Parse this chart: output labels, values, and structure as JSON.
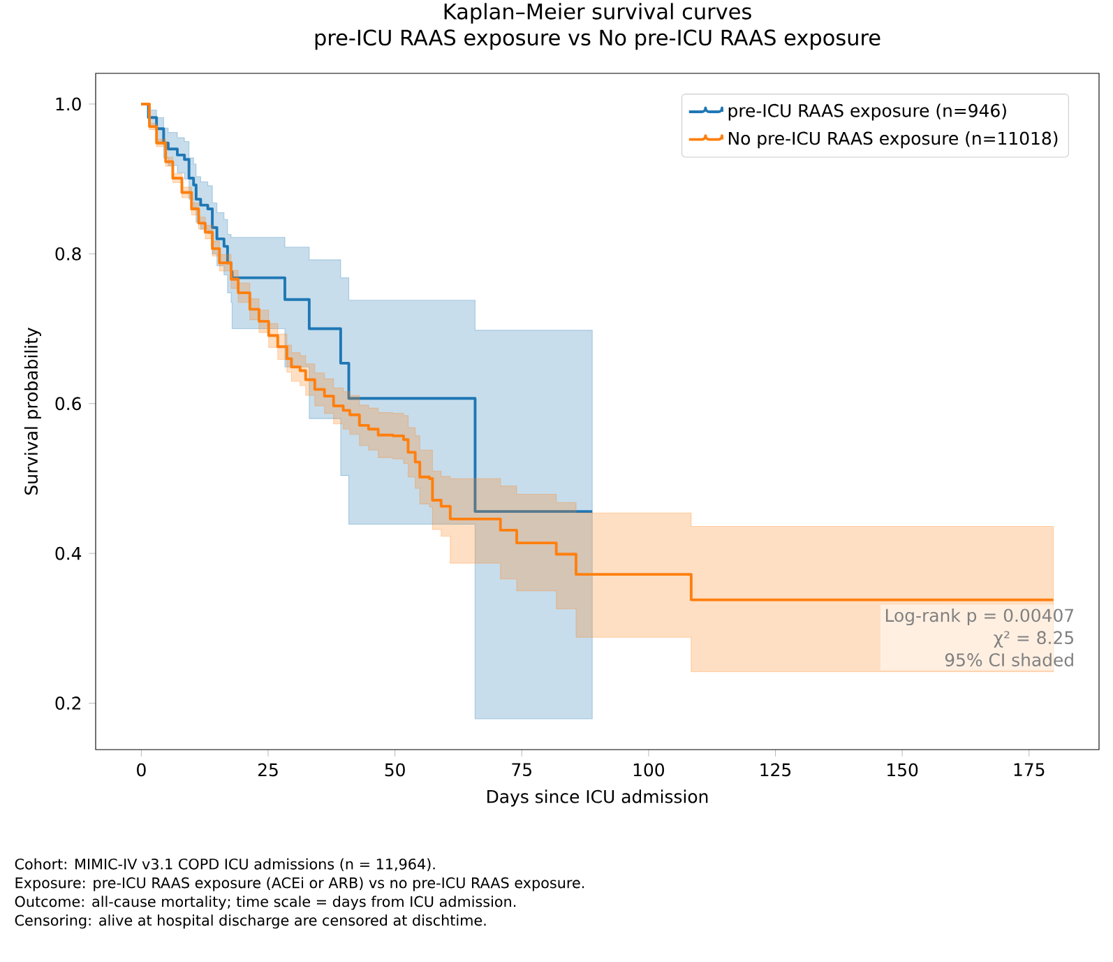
{
  "chart_data": {
    "type": "step",
    "title": "Kaplan–Meier survival curves",
    "subtitle": "pre-ICU RAAS exposure vs No pre-ICU RAAS exposure",
    "xlabel": "Days since ICU admission",
    "ylabel": "Survival probability",
    "xlim": [
      -9,
      188.8
    ],
    "ylim": [
      0.138,
      1.041
    ],
    "xticks": [
      0,
      25,
      50,
      75,
      100,
      125,
      150,
      175
    ],
    "yticks": [
      0.2,
      0.4,
      0.6,
      0.8,
      {
        "value": 1.0,
        "label": "1.0"
      }
    ],
    "legend": "top right",
    "series": [
      {
        "name": "pre-ICU RAAS exposure (n=946)",
        "color": "#1f77b4",
        "x": [
          0,
          1.4,
          3.0,
          4.4,
          5.3,
          7.1,
          8.5,
          9.4,
          10.3,
          10.8,
          11.7,
          13.1,
          14.0,
          14.9,
          16.3,
          17.0,
          17.7,
          17.9,
          28.3,
          33.1,
          39.3,
          40.9,
          65.8,
          88.9
        ],
        "values": [
          1.0,
          0.982,
          0.967,
          0.948,
          0.94,
          0.932,
          0.926,
          0.901,
          0.892,
          0.873,
          0.865,
          0.86,
          0.835,
          0.82,
          0.81,
          0.788,
          0.776,
          0.768,
          0.739,
          0.7,
          0.654,
          0.607,
          0.456,
          0.456
        ],
        "lower": [
          1.0,
          0.97,
          0.95,
          0.928,
          0.918,
          0.908,
          0.9,
          0.873,
          0.862,
          0.842,
          0.833,
          0.827,
          0.8,
          0.784,
          0.772,
          0.748,
          0.735,
          0.7,
          0.649,
          0.58,
          0.504,
          0.439,
          0.179,
          0.179
        ],
        "upper": [
          1.0,
          0.992,
          0.982,
          0.968,
          0.962,
          0.955,
          0.95,
          0.928,
          0.92,
          0.903,
          0.896,
          0.891,
          0.868,
          0.855,
          0.846,
          0.826,
          0.822,
          0.822,
          0.809,
          0.792,
          0.768,
          0.738,
          0.698,
          0.698
        ]
      },
      {
        "name": "No pre-ICU RAAS exposure (n=11018)",
        "color": "#ff7f0e",
        "x": [
          0,
          1.6,
          3.0,
          4.8,
          6.2,
          8.0,
          9.9,
          11.3,
          12.6,
          14.0,
          15.4,
          17.7,
          19.1,
          21.4,
          23.2,
          25.1,
          26.9,
          28.7,
          29.6,
          31.3,
          32.4,
          34.2,
          36.1,
          37.9,
          39.8,
          41.1,
          43.0,
          44.8,
          46.7,
          49.6,
          51.7,
          52.6,
          54.0,
          54.9,
          56.8,
          57.4,
          59.1,
          60.9,
          70.8,
          74.0,
          81.8,
          85.7,
          108.4,
          179.8
        ],
        "values": [
          1.0,
          0.97,
          0.948,
          0.923,
          0.901,
          0.882,
          0.86,
          0.841,
          0.829,
          0.807,
          0.788,
          0.766,
          0.748,
          0.726,
          0.71,
          0.691,
          0.676,
          0.66,
          0.649,
          0.644,
          0.632,
          0.619,
          0.61,
          0.597,
          0.591,
          0.585,
          0.571,
          0.566,
          0.558,
          0.557,
          0.552,
          0.535,
          0.522,
          0.502,
          0.5,
          0.471,
          0.463,
          0.446,
          0.431,
          0.414,
          0.399,
          0.372,
          0.338,
          0.338
        ],
        "lower": [
          1.0,
          0.966,
          0.943,
          0.917,
          0.895,
          0.875,
          0.852,
          0.833,
          0.82,
          0.797,
          0.777,
          0.754,
          0.735,
          0.712,
          0.695,
          0.675,
          0.659,
          0.642,
          0.63,
          0.624,
          0.611,
          0.597,
          0.587,
          0.573,
          0.566,
          0.559,
          0.544,
          0.538,
          0.528,
          0.526,
          0.52,
          0.502,
          0.487,
          0.466,
          0.462,
          0.432,
          0.423,
          0.387,
          0.366,
          0.35,
          0.326,
          0.288,
          0.242,
          0.242
        ],
        "upper": [
          1.0,
          0.974,
          0.953,
          0.929,
          0.907,
          0.889,
          0.868,
          0.849,
          0.838,
          0.817,
          0.799,
          0.778,
          0.761,
          0.74,
          0.725,
          0.707,
          0.693,
          0.678,
          0.668,
          0.664,
          0.653,
          0.641,
          0.633,
          0.621,
          0.616,
          0.611,
          0.598,
          0.594,
          0.588,
          0.587,
          0.584,
          0.568,
          0.557,
          0.538,
          0.538,
          0.51,
          0.503,
          0.5,
          0.49,
          0.479,
          0.468,
          0.454,
          0.436,
          0.436
        ]
      }
    ],
    "annotations": [
      "Log-rank p = 0.00407",
      "χ² = 8.25",
      "95% CI shaded",
      "Cohort: MIMIC-IV v3.1 COPD ICU admissions (n = 11,964).",
      "Exposure: pre-ICU RAAS exposure (ACEi or ARB) vs no pre-ICU RAAS exposure.",
      "Outcome: all-cause mortality; time scale = days from ICU admission.",
      "Censoring: alive at hospital discharge are censored at dischtime."
    ]
  }
}
